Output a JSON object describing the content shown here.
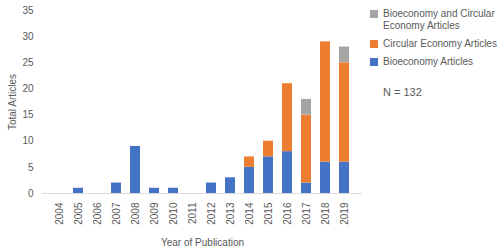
{
  "chart_data": {
    "type": "bar",
    "stacked": true,
    "x_label": "Year of Publication",
    "y_label": "Total Articles",
    "categories": [
      "2004",
      "2005",
      "2006",
      "2007",
      "2008",
      "2009",
      "2010",
      "2011",
      "2012",
      "2013",
      "2014",
      "2015",
      "2016",
      "2017",
      "2018",
      "2019"
    ],
    "series": [
      {
        "name": "Bioeconomy Articles",
        "color": "#4472c4",
        "values": [
          0,
          1,
          0,
          2,
          9,
          1,
          1,
          0,
          2,
          3,
          5,
          7,
          8,
          2,
          6,
          6
        ]
      },
      {
        "name": "Circular Economy Articles",
        "color": "#ed7d31",
        "values": [
          0,
          0,
          0,
          0,
          0,
          0,
          0,
          0,
          0,
          0,
          2,
          3,
          13,
          13,
          23,
          19
        ]
      },
      {
        "name": "Bioeconomy and Circular Economy Articles",
        "color": "#a5a5a5",
        "values": [
          0,
          0,
          0,
          0,
          0,
          0,
          0,
          0,
          0,
          0,
          0,
          0,
          0,
          3,
          0,
          3
        ]
      }
    ],
    "ylim": [
      0,
      35
    ],
    "yticks": [
      0,
      5,
      10,
      15,
      20,
      25,
      30,
      35
    ],
    "grid": false,
    "legend": "right",
    "annotations": [
      "N = 132"
    ]
  }
}
